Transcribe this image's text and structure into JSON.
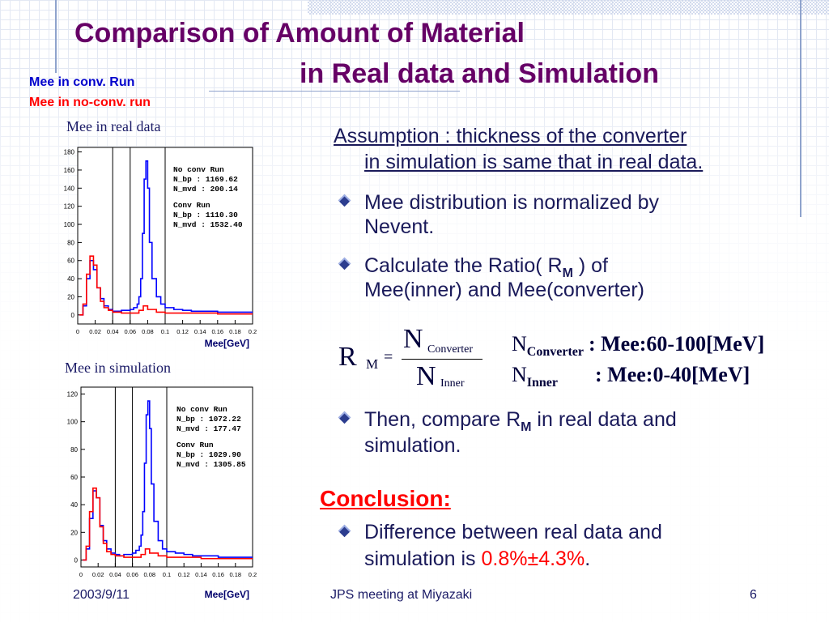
{
  "slide": {
    "title_line1": "Comparison of Amount of Material",
    "title_line2": "in Real data and Simulation",
    "legend_conv": "Mee in conv. Run",
    "legend_noconv": "Mee in no-conv. run",
    "caption_real": "Mee in real data",
    "caption_sim": "Mee in simulation",
    "colors": {
      "title": "#660066",
      "conv": "#0000cc",
      "noconv": "#ff0000",
      "text": "#1a1a5a",
      "accent": "#ff0000"
    }
  },
  "chart_data": [
    {
      "type": "line",
      "title": "Mee in real data",
      "xlabel": "Mee[GeV]",
      "xlim": [
        0,
        0.2
      ],
      "ylim": [
        -10,
        185
      ],
      "x_ticks": [
        "0",
        "0.02",
        "0.04",
        "0.06",
        "0.08",
        "0.1",
        "0.12",
        "0.14",
        "0.16",
        "0.18",
        "0.2"
      ],
      "y_ticks": [
        "0",
        "20",
        "40",
        "60",
        "80",
        "100",
        "120",
        "140",
        "160",
        "180"
      ],
      "window_lines": [
        0.04,
        0.06,
        0.1
      ],
      "stats": [
        {
          "label": "No conv Run",
          "lines": [
            "N_bp : 1169.62",
            "N_mvd : 200.14"
          ]
        },
        {
          "label": "Conv Run",
          "lines": [
            "N_bp : 1110.30",
            "N_mvd : 1532.40"
          ]
        }
      ],
      "series": [
        {
          "name": "Conv Run",
          "color": "blue",
          "x": [
            0.002,
            0.006,
            0.01,
            0.014,
            0.018,
            0.022,
            0.026,
            0.03,
            0.035,
            0.04,
            0.045,
            0.05,
            0.055,
            0.06,
            0.064,
            0.068,
            0.07,
            0.072,
            0.074,
            0.076,
            0.078,
            0.08,
            0.082,
            0.085,
            0.09,
            0.095,
            0.1,
            0.11,
            0.12,
            0.13,
            0.14,
            0.15,
            0.16,
            0.17,
            0.18,
            0.19,
            0.2
          ],
          "y": [
            0,
            10,
            40,
            60,
            50,
            30,
            18,
            10,
            6,
            4,
            4,
            5,
            5,
            6,
            8,
            12,
            20,
            40,
            90,
            150,
            170,
            140,
            80,
            40,
            20,
            12,
            8,
            6,
            5,
            4,
            4,
            4,
            3,
            3,
            3,
            3,
            3
          ]
        },
        {
          "name": "No conv Run",
          "color": "red",
          "x": [
            0.002,
            0.006,
            0.01,
            0.014,
            0.018,
            0.022,
            0.026,
            0.03,
            0.035,
            0.04,
            0.05,
            0.06,
            0.07,
            0.075,
            0.08,
            0.09,
            0.1,
            0.12,
            0.14,
            0.16,
            0.18,
            0.2
          ],
          "y": [
            0,
            12,
            45,
            65,
            55,
            30,
            15,
            8,
            5,
            3,
            2,
            2,
            5,
            10,
            6,
            3,
            2,
            2,
            2,
            1,
            1,
            1
          ]
        }
      ]
    },
    {
      "type": "line",
      "title": "Mee in simulation",
      "xlabel": "Mee[GeV]",
      "xlim": [
        0,
        0.2
      ],
      "ylim": [
        -5,
        125
      ],
      "x_ticks": [
        "0",
        "0.02",
        "0.04",
        "0.06",
        "0.08",
        "0.1",
        "0.12",
        "0.14",
        "0.16",
        "0.18",
        "0.2"
      ],
      "y_ticks": [
        "0",
        "20",
        "40",
        "60",
        "80",
        "100",
        "120"
      ],
      "window_lines": [
        0.04,
        0.06,
        0.1
      ],
      "stats": [
        {
          "label": "No conv Run",
          "lines": [
            "N_bp : 1072.22",
            "N_mvd : 177.47"
          ]
        },
        {
          "label": "Conv Run",
          "lines": [
            "N_bp : 1029.90",
            "N_mvd : 1305.85"
          ]
        }
      ],
      "series": [
        {
          "name": "Conv Run",
          "color": "blue",
          "x": [
            0.002,
            0.006,
            0.01,
            0.014,
            0.018,
            0.022,
            0.026,
            0.03,
            0.035,
            0.04,
            0.045,
            0.05,
            0.055,
            0.06,
            0.064,
            0.068,
            0.07,
            0.072,
            0.074,
            0.076,
            0.078,
            0.08,
            0.082,
            0.085,
            0.09,
            0.095,
            0.1,
            0.11,
            0.12,
            0.13,
            0.14,
            0.15,
            0.16,
            0.17,
            0.18,
            0.19,
            0.2
          ],
          "y": [
            0,
            8,
            30,
            50,
            45,
            25,
            14,
            8,
            5,
            4,
            3,
            4,
            4,
            5,
            7,
            10,
            18,
            35,
            70,
            105,
            115,
            95,
            55,
            28,
            14,
            8,
            6,
            5,
            4,
            3,
            3,
            3,
            2,
            2,
            2,
            2,
            2
          ]
        },
        {
          "name": "No conv Run",
          "color": "red",
          "x": [
            0.002,
            0.006,
            0.01,
            0.014,
            0.018,
            0.022,
            0.026,
            0.03,
            0.035,
            0.04,
            0.05,
            0.06,
            0.07,
            0.075,
            0.08,
            0.09,
            0.1,
            0.12,
            0.14,
            0.16,
            0.18,
            0.2
          ],
          "y": [
            0,
            10,
            35,
            52,
            45,
            24,
            12,
            6,
            4,
            3,
            2,
            2,
            4,
            8,
            5,
            3,
            2,
            2,
            1,
            1,
            1,
            1
          ]
        }
      ]
    }
  ],
  "content": {
    "assumption_line1": "Assumption : thickness of the converter",
    "assumption_line2": "in simulation is same that in real data.",
    "bullet1_line1": "Mee distribution is normalized by",
    "bullet1_line2": "Nevent.",
    "bullet2_pre": "Calculate the Ratio( R",
    "bullet2_sub": "M",
    "bullet2_post": " ) of",
    "bullet2_line2": "Mee(inner) and Mee(converter)",
    "formula": {
      "R": "R",
      "R_sub": "M",
      "eq": "=",
      "num": "N",
      "num_sub": "Converter",
      "den": "N",
      "den_sub": "Inner"
    },
    "defs": [
      {
        "N": "N",
        "sub": "Converter",
        "text": ": Mee:60-100[MeV]"
      },
      {
        "N": "N",
        "sub": "Inner",
        "text": ": Mee:0-40[MeV]"
      }
    ],
    "bullet3_pre": "Then, compare R",
    "bullet3_sub": "M",
    "bullet3_post": " in real data and",
    "bullet3_line2": "simulation.",
    "conclusion_heading": "Conclusion:",
    "conclusion_line1": "Difference between real data and",
    "conclusion_line2_pre": "simulation is ",
    "conclusion_value": "0.8%±4.3%",
    "conclusion_line2_post": "."
  },
  "footer": {
    "date": "2003/9/11",
    "meeting": "JPS meeting at Miyazaki",
    "page": "6"
  }
}
